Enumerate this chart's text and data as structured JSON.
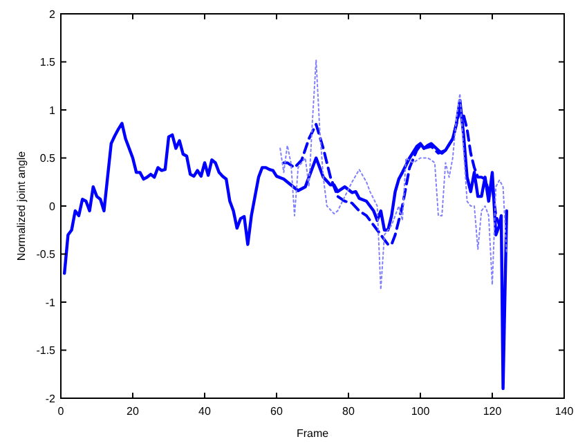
{
  "chart_data": {
    "type": "line",
    "xlabel": "Frame",
    "ylabel": "Normalized joint angle",
    "xlim": [
      0,
      140
    ],
    "ylim": [
      -2,
      2
    ],
    "xticks": [
      0,
      20,
      40,
      60,
      80,
      100,
      120,
      140
    ],
    "yticks": [
      -2,
      -1.5,
      -1,
      -0.5,
      0,
      0.5,
      1,
      1.5,
      2
    ],
    "grid": false,
    "series": [
      {
        "color": "#0000ff",
        "line_style": "solid",
        "x": [
          1,
          2,
          3,
          4,
          5,
          6,
          7,
          8,
          9,
          10,
          11,
          12,
          13,
          14,
          15,
          16,
          17,
          18,
          19,
          20,
          21,
          22,
          23,
          24,
          25,
          26,
          27,
          28,
          29,
          30,
          31,
          32,
          33,
          34,
          35,
          36,
          37,
          38,
          39,
          40,
          41,
          42,
          43,
          44,
          45,
          46,
          47,
          48,
          49,
          50,
          51,
          52,
          53,
          54,
          55,
          56,
          57,
          58,
          59,
          60,
          62,
          64,
          66,
          68,
          71,
          73,
          75,
          76,
          77,
          79,
          81,
          82,
          83,
          85,
          87,
          88,
          89,
          90,
          91,
          92,
          93,
          94,
          95,
          97,
          99,
          100,
          101,
          102,
          103,
          105,
          106,
          107,
          109,
          110,
          111,
          112,
          113,
          114,
          115,
          116,
          117,
          118,
          119,
          120,
          121,
          122,
          122.5,
          123,
          124
        ],
        "values": [
          -0.7,
          -0.3,
          -0.25,
          -0.05,
          -0.1,
          0.07,
          0.05,
          -0.05,
          0.2,
          0.1,
          0.07,
          -0.05,
          0.3,
          0.65,
          0.73,
          0.8,
          0.86,
          0.7,
          0.6,
          0.5,
          0.35,
          0.35,
          0.28,
          0.3,
          0.33,
          0.3,
          0.4,
          0.37,
          0.38,
          0.72,
          0.74,
          0.6,
          0.68,
          0.54,
          0.52,
          0.33,
          0.31,
          0.37,
          0.31,
          0.45,
          0.32,
          0.48,
          0.45,
          0.35,
          0.31,
          0.28,
          0.05,
          -0.05,
          -0.23,
          -0.13,
          -0.11,
          -0.4,
          -0.1,
          0.1,
          0.3,
          0.4,
          0.4,
          0.38,
          0.37,
          0.31,
          0.28,
          0.22,
          0.16,
          0.2,
          0.5,
          0.3,
          0.22,
          0.22,
          0.15,
          0.2,
          0.14,
          0.15,
          0.08,
          0.05,
          -0.05,
          -0.15,
          -0.05,
          -0.25,
          -0.25,
          -0.1,
          0.15,
          0.28,
          0.35,
          0.5,
          0.62,
          0.65,
          0.6,
          0.63,
          0.65,
          0.58,
          0.55,
          0.58,
          0.7,
          0.85,
          1.1,
          0.75,
          0.3,
          0.15,
          0.35,
          0.1,
          0.1,
          0.3,
          0.05,
          0.35,
          -0.3,
          -0.2,
          -0.1,
          -1.9,
          -0.05
        ]
      },
      {
        "color": "#0000ff",
        "line_style": "dashed",
        "x": [
          62,
          63,
          65,
          67,
          69,
          71,
          73,
          75,
          77,
          79,
          81,
          83,
          85,
          87,
          89,
          91,
          92,
          93,
          95,
          97,
          99,
          100,
          101,
          103,
          105,
          107,
          109,
          110,
          111,
          112,
          113,
          114,
          115,
          116,
          117,
          118,
          119,
          120,
          121,
          122
        ],
        "values": [
          0.45,
          0.45,
          0.4,
          0.48,
          0.7,
          0.85,
          0.6,
          0.3,
          0.1,
          0.05,
          0.03,
          -0.05,
          -0.1,
          -0.2,
          -0.3,
          -0.4,
          -0.4,
          -0.3,
          0.0,
          0.4,
          0.58,
          0.63,
          0.6,
          0.62,
          0.55,
          0.58,
          0.7,
          0.85,
          1.0,
          0.95,
          0.8,
          0.55,
          0.4,
          0.3,
          0.3,
          0.28,
          0.15,
          0.2,
          -0.1,
          -0.2
        ]
      },
      {
        "color": "#8080ff",
        "line_style": "dotted",
        "x": [
          61,
          62,
          63,
          64,
          65,
          66,
          68,
          69,
          70,
          71,
          72,
          73,
          74,
          76,
          77,
          79,
          81,
          83,
          85,
          86,
          88,
          89,
          90,
          92,
          94,
          95,
          96,
          98,
          100,
          102,
          103,
          104,
          105,
          106,
          107,
          108,
          109,
          110,
          111,
          112,
          113,
          114,
          115,
          116,
          117,
          118,
          119,
          120,
          121,
          122,
          123,
          124
        ],
        "values": [
          0.6,
          0.35,
          0.63,
          0.45,
          -0.1,
          0.4,
          0.5,
          0.2,
          0.9,
          1.52,
          0.8,
          0.3,
          0.0,
          -0.08,
          -0.05,
          0.1,
          0.25,
          0.38,
          0.25,
          0.15,
          0.0,
          -0.87,
          -0.3,
          -0.2,
          0.0,
          -0.15,
          0.5,
          0.45,
          0.5,
          0.5,
          0.48,
          0.45,
          -0.1,
          -0.1,
          0.45,
          0.3,
          0.5,
          0.9,
          1.17,
          0.6,
          0.05,
          0.0,
          0.0,
          -0.45,
          -0.05,
          0.0,
          -0.1,
          -0.82,
          0.2,
          0.27,
          0.2,
          -0.5
        ]
      }
    ]
  }
}
